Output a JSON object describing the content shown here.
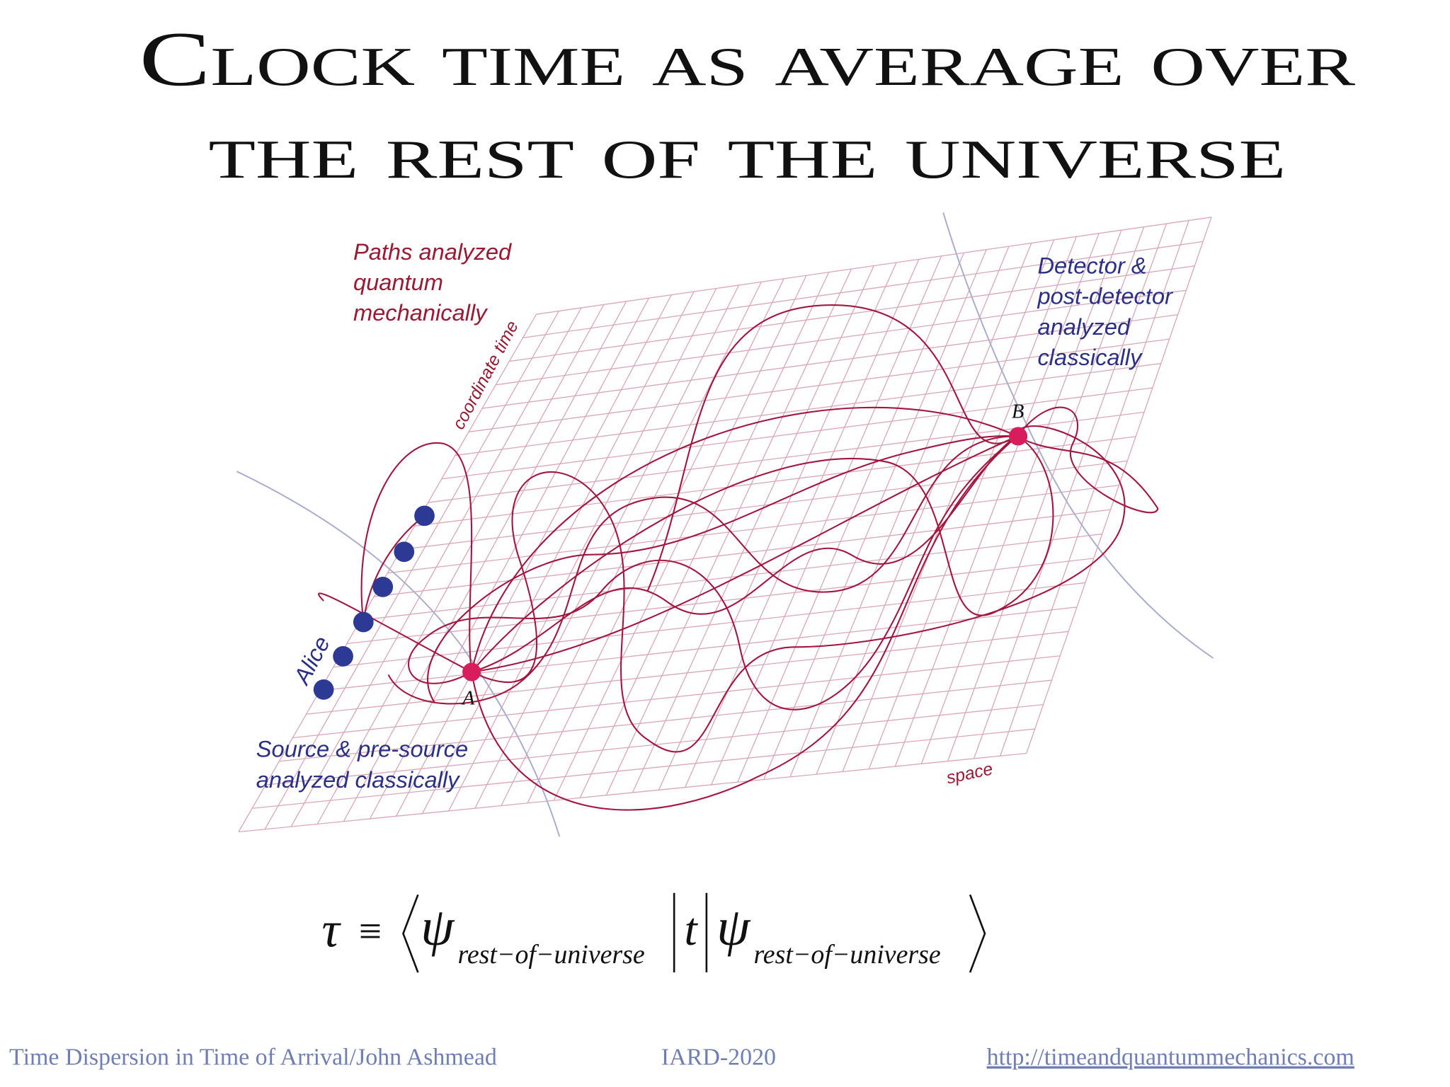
{
  "title": {
    "line1": "Clock time as average over",
    "line2": "the rest of the universe"
  },
  "diagram": {
    "paths_label": [
      "Paths analyzed",
      "quantum",
      "mechanically"
    ],
    "time_axis_label": "coordinate time",
    "detector_label": [
      "Detector &",
      "post-detector",
      "analyzed",
      "classically"
    ],
    "observer_label": "Alice",
    "source_label": [
      "Source & pre-source",
      "analyzed classically"
    ],
    "space_axis_label": "space",
    "point_a": "A",
    "point_b": "B"
  },
  "formula": {
    "lhs": "τ",
    "relation": "≡",
    "state": "ψ",
    "subscript": "rest−of−universe",
    "operator": "t"
  },
  "footer": {
    "left": "Time Dispersion in Time of Arrival/John Ashmead",
    "center": "IARD-2020",
    "right": "http://timeandquantummechanics.com"
  }
}
